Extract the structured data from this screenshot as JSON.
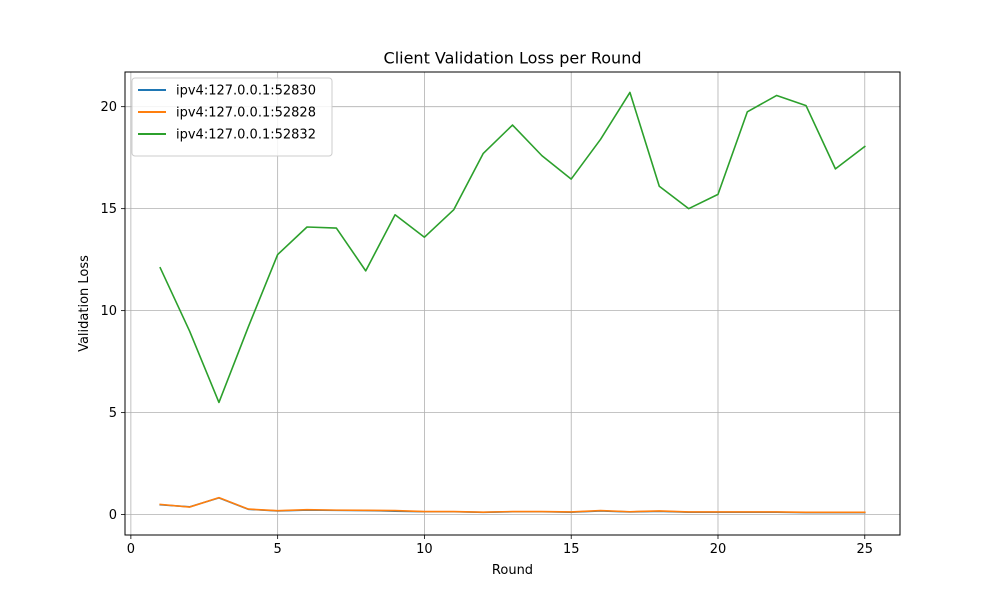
{
  "chart_data": {
    "type": "line",
    "title": "Client Validation Loss per Round",
    "xlabel": "Round",
    "ylabel": "Validation Loss",
    "xlim": [
      -0.2,
      26.2
    ],
    "ylim": [
      -1.0,
      21.7
    ],
    "x_ticks": [
      0,
      5,
      10,
      15,
      20,
      25
    ],
    "y_ticks": [
      0,
      5,
      10,
      15,
      20
    ],
    "grid": true,
    "legend_position": "top-left",
    "x": [
      1,
      2,
      3,
      4,
      5,
      6,
      7,
      8,
      9,
      10,
      11,
      12,
      13,
      14,
      15,
      16,
      17,
      18,
      19,
      20,
      21,
      22,
      23,
      24,
      25
    ],
    "series": [
      {
        "name": "ipv4:127.0.0.1:52830",
        "color": "#1f77b4",
        "values": [
          0.48,
          0.38,
          0.82,
          0.26,
          0.18,
          0.22,
          0.21,
          0.2,
          0.17,
          0.14,
          0.14,
          0.11,
          0.14,
          0.14,
          0.12,
          0.18,
          0.13,
          0.16,
          0.12,
          0.12,
          0.12,
          0.12,
          0.1,
          0.1,
          0.1
        ]
      },
      {
        "name": "ipv4:127.0.0.1:52828",
        "color": "#ff7f0e",
        "values": [
          0.5,
          0.37,
          0.83,
          0.27,
          0.19,
          0.24,
          0.22,
          0.21,
          0.2,
          0.15,
          0.15,
          0.12,
          0.15,
          0.15,
          0.13,
          0.2,
          0.14,
          0.18,
          0.13,
          0.13,
          0.13,
          0.13,
          0.11,
          0.11,
          0.11
        ]
      },
      {
        "name": "ipv4:127.0.0.1:52832",
        "color": "#2ca02c",
        "values": [
          12.1,
          9.0,
          5.5,
          9.2,
          12.75,
          14.1,
          14.05,
          11.95,
          14.7,
          13.6,
          14.95,
          17.7,
          19.1,
          17.6,
          16.45,
          18.4,
          20.7,
          16.1,
          15.0,
          15.7,
          19.75,
          20.55,
          20.05,
          16.95,
          18.05
        ]
      }
    ]
  }
}
